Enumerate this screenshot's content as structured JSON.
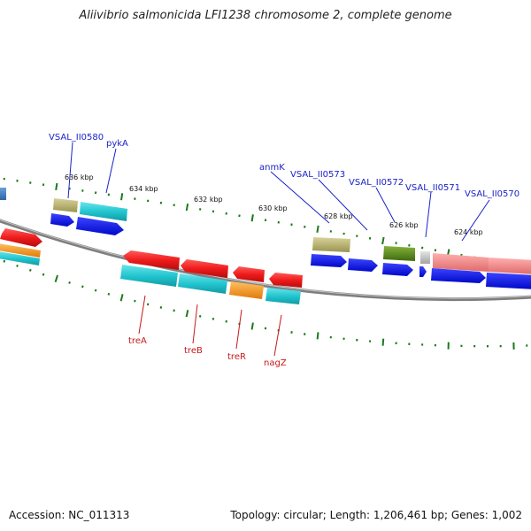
{
  "title": "Aliivibrio salmonicida LFI1238 chromosome 2, complete genome",
  "footer": {
    "accession": "Accession: NC_011313",
    "summary": "Topology: circular; Length: 1,206,461 bp; Genes: 1,002"
  },
  "colors": {
    "backbone": "#8a8a8a",
    "tick": "#1a7a1a",
    "label_blue": "#1a22c8",
    "label_red": "#c81818",
    "blue": "#0a14e6",
    "cyan": "#22c6d0",
    "red": "#ee1c1c",
    "orange": "#f59a1a",
    "khaki": "#b2ac6a",
    "olive": "#5c8a1e",
    "pink": "#f08a8a",
    "grey": "#c0c0c0"
  },
  "scale_labels": [
    "636 kbp",
    "634 kbp",
    "632 kbp",
    "630 kbp",
    "628 kbp",
    "626 kbp",
    "624 kbp"
  ],
  "gene_labels": [
    {
      "id": "VSAL_II0580",
      "text": "VSAL_II0580",
      "group": "top"
    },
    {
      "id": "pykA",
      "text": "pykA",
      "group": "top"
    },
    {
      "id": "anmK",
      "text": "anmK",
      "group": "top"
    },
    {
      "id": "VSAL_II0573",
      "text": "VSAL_II0573",
      "group": "top"
    },
    {
      "id": "VSAL_II0572",
      "text": "VSAL_II0572",
      "group": "top"
    },
    {
      "id": "VSAL_II0571",
      "text": "VSAL_II0571",
      "group": "top"
    },
    {
      "id": "VSAL_II0570",
      "text": "VSAL_II0570",
      "group": "top"
    },
    {
      "id": "treA",
      "text": "treA",
      "group": "bottom"
    },
    {
      "id": "treB",
      "text": "treB",
      "group": "bottom"
    },
    {
      "id": "treR",
      "text": "treR",
      "group": "bottom"
    },
    {
      "id": "nagZ",
      "text": "nagZ",
      "group": "bottom"
    }
  ]
}
